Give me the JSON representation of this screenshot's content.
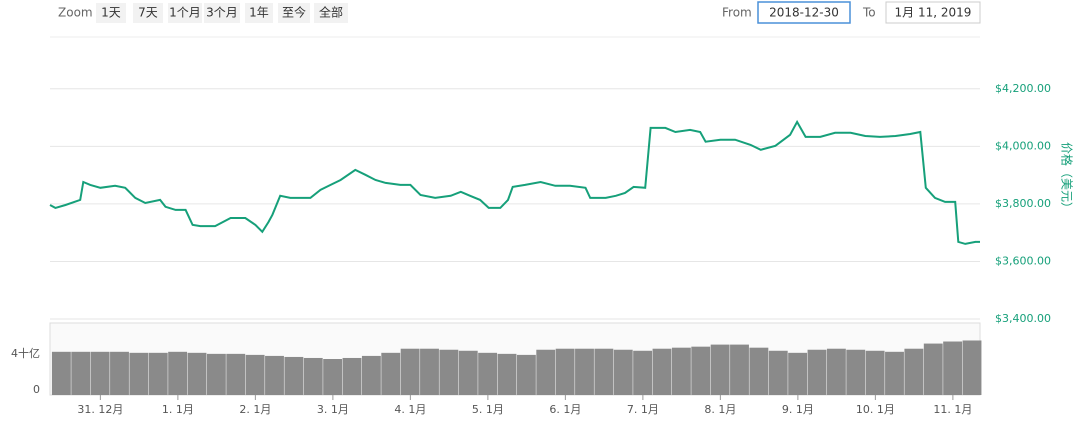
{
  "controls": {
    "zoom_label": "Zoom",
    "buttons": [
      "1天",
      "7天",
      "1个月",
      "3个月",
      "1年",
      "至今",
      "全部"
    ],
    "from_label": "From",
    "from_value": "2018-12-30",
    "to_label": "To",
    "to_value": "1月 11, 2019"
  },
  "chart_data": [
    {
      "type": "line",
      "color": "#16a07a",
      "y_label": "价格（美元）",
      "grid": true,
      "xlim": [
        -0.65,
        11.35
      ],
      "ylim": [
        3400,
        4380
      ],
      "yticks": [
        {
          "value": 3400,
          "label": "$3,400.00"
        },
        {
          "value": 3600,
          "label": "$3,600.00"
        },
        {
          "value": 3800,
          "label": "$3,800.00"
        },
        {
          "value": 4000,
          "label": "$4,000.00"
        },
        {
          "value": 4200,
          "label": "$4,200.00"
        }
      ],
      "x": [
        -0.65,
        -0.58,
        -0.45,
        -0.26,
        -0.22,
        -0.13,
        0,
        0.19,
        0.32,
        0.45,
        0.58,
        0.77,
        0.84,
        0.97,
        1.1,
        1.19,
        1.29,
        1.48,
        1.68,
        1.87,
        2.0,
        2.09,
        2.17,
        2.22,
        2.32,
        2.45,
        2.71,
        2.84,
        2.97,
        3.1,
        3.29,
        3.42,
        3.55,
        3.68,
        3.87,
        4.0,
        4.13,
        4.32,
        4.52,
        4.65,
        4.77,
        4.9,
        5.01,
        5.16,
        5.26,
        5.32,
        5.48,
        5.68,
        5.87,
        6.06,
        6.26,
        6.32,
        6.52,
        6.65,
        6.77,
        6.88,
        7.03,
        7.1,
        7.29,
        7.42,
        7.61,
        7.74,
        7.81,
        8.0,
        8.19,
        8.39,
        8.52,
        8.71,
        8.9,
        8.99,
        9.1,
        9.29,
        9.48,
        9.68,
        9.87,
        10.06,
        10.26,
        10.45,
        10.58,
        10.65,
        10.77,
        10.9,
        11.03,
        11.07,
        11.16,
        11.29,
        11.35
      ],
      "values": [
        3796,
        3786,
        3796,
        3814,
        3876,
        3866,
        3856,
        3863,
        3856,
        3821,
        3803,
        3814,
        3790,
        3779,
        3779,
        3727,
        3723,
        3723,
        3751,
        3751,
        3727,
        3703,
        3737,
        3762,
        3828,
        3821,
        3821,
        3849,
        3866,
        3883,
        3918,
        3901,
        3883,
        3873,
        3866,
        3866,
        3831,
        3821,
        3828,
        3842,
        3828,
        3814,
        3786,
        3786,
        3814,
        3859,
        3866,
        3876,
        3863,
        3863,
        3856,
        3821,
        3821,
        3828,
        3838,
        3859,
        3856,
        4064,
        4064,
        4050,
        4057,
        4050,
        4016,
        4023,
        4023,
        4005,
        3988,
        4002,
        4040,
        4085,
        4033,
        4033,
        4047,
        4047,
        4036,
        4033,
        4036,
        4043,
        4050,
        3856,
        3821,
        3807,
        3807,
        3668,
        3661,
        3668,
        3668
      ]
    },
    {
      "type": "bar",
      "color": "#8a8a8a",
      "xlim": [
        -0.65,
        11.35
      ],
      "ylim": [
        0,
        7000000000
      ],
      "yticks": [
        0,
        {
          "value": 4000000000,
          "label": "4十亿"
        }
      ],
      "xticks": [
        {
          "value": 0,
          "label": "31. 12月"
        },
        {
          "value": 1,
          "label": "1. 1月"
        },
        {
          "value": 2,
          "label": "2. 1月"
        },
        {
          "value": 3,
          "label": "3. 1月"
        },
        {
          "value": 4,
          "label": "4. 1月"
        },
        {
          "value": 5,
          "label": "5. 1月"
        },
        {
          "value": 6,
          "label": "6. 1月"
        },
        {
          "value": 7,
          "label": "7. 1月"
        },
        {
          "value": 8,
          "label": "8. 1月"
        },
        {
          "value": 9,
          "label": "9. 1月"
        },
        {
          "value": 10,
          "label": "10. 1月"
        },
        {
          "value": 11,
          "label": "11. 1月"
        }
      ],
      "x": [
        -0.5,
        -0.25,
        0,
        0.25,
        0.5,
        0.75,
        1,
        1.25,
        1.5,
        1.75,
        2,
        2.25,
        2.5,
        2.75,
        3,
        3.25,
        3.5,
        3.75,
        4,
        4.25,
        4.5,
        4.75,
        5,
        5.25,
        5.5,
        5.75,
        6,
        6.25,
        6.5,
        6.75,
        7,
        7.25,
        7.5,
        7.75,
        8,
        8.25,
        8.5,
        8.75,
        9,
        9.25,
        9.5,
        9.75,
        10,
        10.25,
        10.5,
        10.75,
        11,
        11.25
      ],
      "values": [
        4200000000,
        4200000000,
        4200000000,
        4200000000,
        4100000000,
        4100000000,
        4200000000,
        4100000000,
        4000000000,
        4000000000,
        3900000000,
        3800000000,
        3700000000,
        3600000000,
        3500000000,
        3600000000,
        3800000000,
        4100000000,
        4500000000,
        4500000000,
        4400000000,
        4300000000,
        4100000000,
        4000000000,
        3900000000,
        4400000000,
        4500000000,
        4500000000,
        4500000000,
        4400000000,
        4300000000,
        4500000000,
        4600000000,
        4700000000,
        4900000000,
        4900000000,
        4600000000,
        4300000000,
        4100000000,
        4400000000,
        4500000000,
        4400000000,
        4300000000,
        4200000000,
        4500000000,
        5000000000,
        5200000000,
        5300000000
      ]
    }
  ]
}
